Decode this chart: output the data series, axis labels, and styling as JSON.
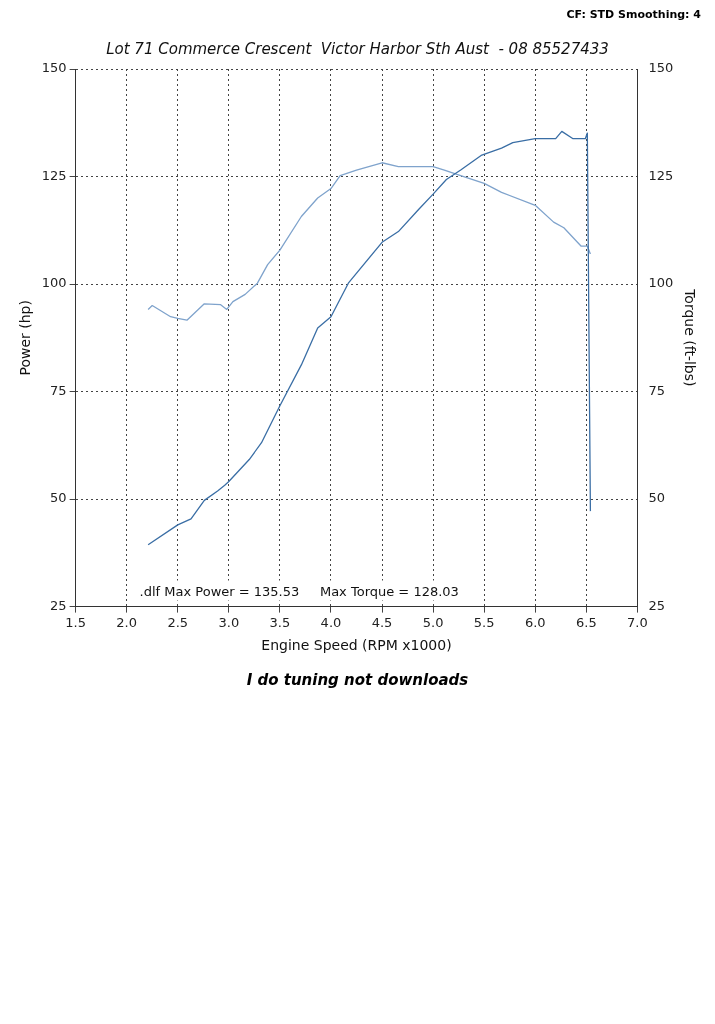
{
  "chart_data": {
    "type": "line",
    "title": "Lot 71 Commerce Crescent  Victor Harbor Sth Aust  - 08 85527433",
    "xlabel": "Engine Speed (RPM x1000)",
    "ylabel": "Power (hp)",
    "y2label": "Torque (ft-lbs)",
    "xlim": [
      1.5,
      7.0
    ],
    "xticks": [
      1.5,
      {
        "value": 2,
        "label": "2.0"
      },
      2.5,
      {
        "value": 3,
        "label": "3.0"
      },
      3.5,
      {
        "value": 4,
        "label": "4.0"
      },
      4.5,
      {
        "value": 5,
        "label": "5.0"
      },
      5.5,
      {
        "value": 6,
        "label": "6.0"
      },
      6.5,
      {
        "value": 7,
        "label": "7.0"
      }
    ],
    "ylim": [
      25,
      150
    ],
    "yticks": [
      25,
      50,
      75,
      100,
      125,
      150
    ],
    "y2lim": [
      25,
      150
    ],
    "y2ticks": [
      25,
      50,
      75,
      100,
      125,
      150
    ],
    "grid": true,
    "line_style": "solid",
    "marker": "none",
    "series": [
      {
        "color": "#3a6ea5",
        "x": [
          2.21,
          2.5,
          2.63,
          2.76,
          2.89,
          2.96,
          3.0,
          3.2,
          3.32,
          3.5,
          3.71,
          3.87,
          4.0,
          4.17,
          4.5,
          4.66,
          4.86,
          5.0,
          5.13,
          5.27,
          5.47,
          5.67,
          5.78,
          6.0,
          6.2,
          6.26,
          6.37,
          6.49,
          6.51,
          6.54
        ],
        "values": [
          39.4,
          44.0,
          45.4,
          49.7,
          51.9,
          53.2,
          54.1,
          59.2,
          63.1,
          71.7,
          81.2,
          89.8,
          92.4,
          100.2,
          109.7,
          112.2,
          117.4,
          120.9,
          124.3,
          126.5,
          129.9,
          131.6,
          132.9,
          133.8,
          133.8,
          135.5,
          133.8,
          133.8,
          135.1,
          47.2
        ]
      },
      {
        "color": "#7fa3cc",
        "axis": "y2",
        "x": [
          2.21,
          2.25,
          2.43,
          2.5,
          2.59,
          2.76,
          2.92,
          2.98,
          3.04,
          3.16,
          3.28,
          3.38,
          3.5,
          3.71,
          3.87,
          4.0,
          4.09,
          4.25,
          4.5,
          4.66,
          5.0,
          5.11,
          5.27,
          5.5,
          5.67,
          6.0,
          6.18,
          6.28,
          6.45,
          6.51,
          6.54
        ],
        "values": [
          94.1,
          95.0,
          92.4,
          92.0,
          91.6,
          95.4,
          95.2,
          94.1,
          95.9,
          97.6,
          100.2,
          104.5,
          107.9,
          115.7,
          120.0,
          122.2,
          125.2,
          126.5,
          128.2,
          127.3,
          127.3,
          126.5,
          125.2,
          123.4,
          121.3,
          118.3,
          114.4,
          113.1,
          108.8,
          108.8,
          107.0
        ]
      }
    ],
    "annotations": [
      "CF: STD Smoothing: 4",
      ".dlf Max Power = 135.53     Max Torque = 128.03",
      "I do tuning not downloads"
    ]
  }
}
